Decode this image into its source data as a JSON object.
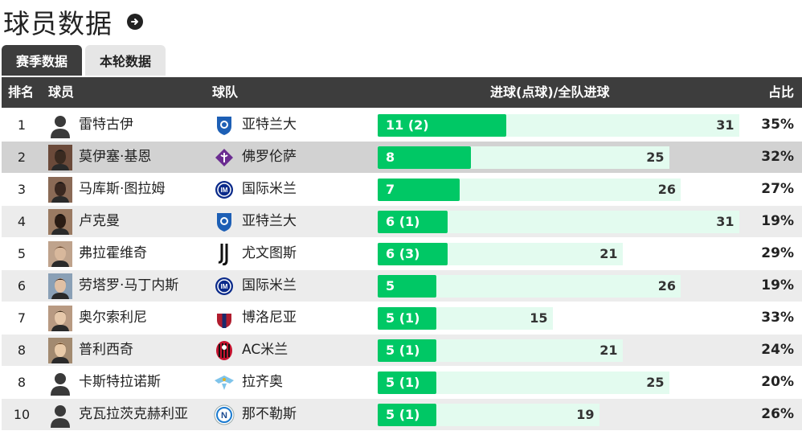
{
  "page": {
    "title": "球员数据"
  },
  "tabs": [
    {
      "label": "赛季数据",
      "active": true
    },
    {
      "label": "本轮数据",
      "active": false
    }
  ],
  "table": {
    "headers": {
      "rank": "排名",
      "player": "球员",
      "team": "球队",
      "goals": "进球(点球)/全队进球",
      "pct": "占比"
    },
    "rows": [
      {
        "rank": "1",
        "player": "雷特古伊",
        "team": "亚特兰大",
        "team_logo": "atalanta-logo",
        "avatar": "placeholder",
        "goals_label": "11 (2)",
        "goals": 11,
        "team_total": 31,
        "team_total_label": "31",
        "pct": "35%"
      },
      {
        "rank": "2",
        "player": "莫伊塞·基恩",
        "team": "佛罗伦萨",
        "team_logo": "fiorentina-logo",
        "avatar": "photo",
        "goals_label": "8",
        "goals": 8,
        "team_total": 25,
        "team_total_label": "25",
        "pct": "32%"
      },
      {
        "rank": "3",
        "player": "马库斯·图拉姆",
        "team": "国际米兰",
        "team_logo": "inter-logo",
        "avatar": "photo",
        "goals_label": "7",
        "goals": 7,
        "team_total": 26,
        "team_total_label": "26",
        "pct": "27%"
      },
      {
        "rank": "4",
        "player": "卢克曼",
        "team": "亚特兰大",
        "team_logo": "atalanta-logo",
        "avatar": "photo",
        "goals_label": "6 (1)",
        "goals": 6,
        "team_total": 31,
        "team_total_label": "31",
        "pct": "19%"
      },
      {
        "rank": "5",
        "player": "弗拉霍维奇",
        "team": "尤文图斯",
        "team_logo": "juventus-logo",
        "avatar": "photo",
        "goals_label": "6 (3)",
        "goals": 6,
        "team_total": 21,
        "team_total_label": "21",
        "pct": "29%"
      },
      {
        "rank": "6",
        "player": "劳塔罗·马丁内斯",
        "team": "国际米兰",
        "team_logo": "inter-logo",
        "avatar": "photo",
        "goals_label": "5",
        "goals": 5,
        "team_total": 26,
        "team_total_label": "26",
        "pct": "19%"
      },
      {
        "rank": "7",
        "player": "奥尔索利尼",
        "team": "博洛尼亚",
        "team_logo": "bologna-logo",
        "avatar": "photo",
        "goals_label": "5 (1)",
        "goals": 5,
        "team_total": 15,
        "team_total_label": "15",
        "pct": "33%"
      },
      {
        "rank": "8",
        "player": "普利西奇",
        "team": "AC米兰",
        "team_logo": "acmilan-logo",
        "avatar": "photo",
        "goals_label": "5 (1)",
        "goals": 5,
        "team_total": 21,
        "team_total_label": "21",
        "pct": "24%"
      },
      {
        "rank": "8",
        "player": "卡斯特拉诺斯",
        "team": "拉齐奥",
        "team_logo": "lazio-logo",
        "avatar": "placeholder",
        "goals_label": "5 (1)",
        "goals": 5,
        "team_total": 25,
        "team_total_label": "25",
        "pct": "20%"
      },
      {
        "rank": "10",
        "player": "克瓦拉茨克赫利亚",
        "team": "那不勒斯",
        "team_logo": "napoli-logo",
        "avatar": "placeholder",
        "goals_label": "5 (1)",
        "goals": 5,
        "team_total": 19,
        "team_total_label": "19",
        "pct": "26%"
      }
    ]
  },
  "colors": {
    "header_bg": "#3d3d3d",
    "goal_bar": "#00c865",
    "total_bar": "#e3fbef",
    "row_alt": "#ececec",
    "row_highlight": "#d2d2d2"
  },
  "icons": {
    "title_action": "arrow-right-circle-icon"
  }
}
